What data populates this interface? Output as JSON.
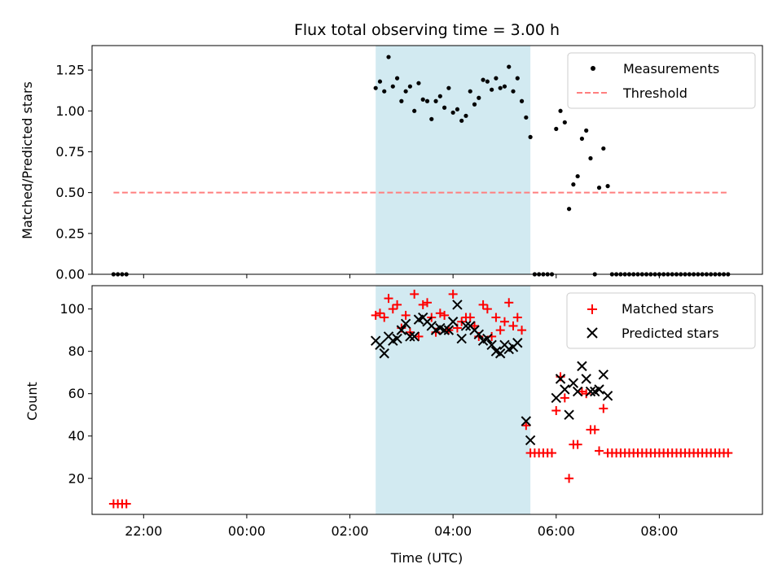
{
  "chart_data": [
    {
      "type": "scatter",
      "title": "Flux total observing time = 3.00 h",
      "xlabel": "",
      "ylabel": "Matched/Predicted stars",
      "ylim": [
        0,
        1.4
      ],
      "yticks": [
        "0.00",
        "0.25",
        "0.50",
        "0.75",
        "1.00",
        "1.25"
      ],
      "xlim": [
        "21:00",
        "10:00"
      ],
      "shaded_region": [
        "02:30",
        "05:30"
      ],
      "shaded_color": "#add8e6",
      "legend_position": "top-right",
      "series": [
        {
          "name": "Measurements",
          "color": "#000000",
          "marker": "dot",
          "points": [
            [
              "21:25",
              0
            ],
            [
              "21:30",
              0
            ],
            [
              "21:35",
              0
            ],
            [
              "21:40",
              0
            ],
            [
              "02:30",
              1.14
            ],
            [
              "02:35",
              1.18
            ],
            [
              "02:40",
              1.12
            ],
            [
              "02:45",
              1.33
            ],
            [
              "02:50",
              1.15
            ],
            [
              "02:55",
              1.2
            ],
            [
              "03:00",
              1.06
            ],
            [
              "03:05",
              1.12
            ],
            [
              "03:10",
              1.15
            ],
            [
              "03:15",
              1.0
            ],
            [
              "03:20",
              1.17
            ],
            [
              "03:25",
              1.07
            ],
            [
              "03:30",
              1.06
            ],
            [
              "03:35",
              0.95
            ],
            [
              "03:40",
              1.06
            ],
            [
              "03:45",
              1.09
            ],
            [
              "03:50",
              1.02
            ],
            [
              "03:55",
              1.14
            ],
            [
              "04:00",
              0.99
            ],
            [
              "04:05",
              1.01
            ],
            [
              "04:10",
              0.94
            ],
            [
              "04:15",
              0.97
            ],
            [
              "04:20",
              1.12
            ],
            [
              "04:25",
              1.04
            ],
            [
              "04:30",
              1.08
            ],
            [
              "04:35",
              1.19
            ],
            [
              "04:40",
              1.18
            ],
            [
              "04:45",
              1.13
            ],
            [
              "04:50",
              1.2
            ],
            [
              "04:55",
              1.14
            ],
            [
              "05:00",
              1.15
            ],
            [
              "05:05",
              1.27
            ],
            [
              "05:10",
              1.12
            ],
            [
              "05:15",
              1.2
            ],
            [
              "05:20",
              1.06
            ],
            [
              "05:25",
              0.96
            ],
            [
              "05:30",
              0.84
            ],
            [
              "05:35",
              0
            ],
            [
              "05:40",
              0
            ],
            [
              "05:45",
              0
            ],
            [
              "05:50",
              0
            ],
            [
              "05:55",
              0
            ],
            [
              "06:00",
              0.89
            ],
            [
              "06:05",
              1.0
            ],
            [
              "06:10",
              0.93
            ],
            [
              "06:15",
              0.4
            ],
            [
              "06:20",
              0.55
            ],
            [
              "06:25",
              0.6
            ],
            [
              "06:30",
              0.83
            ],
            [
              "06:35",
              0.88
            ],
            [
              "06:40",
              0.71
            ],
            [
              "06:45",
              0.0
            ],
            [
              "06:50",
              0.53
            ],
            [
              "06:55",
              0.77
            ],
            [
              "07:00",
              0.54
            ],
            [
              "07:05",
              0
            ],
            [
              "07:10",
              0
            ],
            [
              "07:15",
              0
            ],
            [
              "07:20",
              0
            ],
            [
              "07:25",
              0
            ],
            [
              "07:30",
              0
            ],
            [
              "07:35",
              0
            ],
            [
              "07:40",
              0
            ],
            [
              "07:45",
              0
            ],
            [
              "07:50",
              0
            ],
            [
              "07:55",
              0
            ],
            [
              "08:00",
              0
            ],
            [
              "08:05",
              0
            ],
            [
              "08:10",
              0
            ],
            [
              "08:15",
              0
            ],
            [
              "08:20",
              0
            ],
            [
              "08:25",
              0
            ],
            [
              "08:30",
              0
            ],
            [
              "08:35",
              0
            ],
            [
              "08:40",
              0
            ],
            [
              "08:45",
              0
            ],
            [
              "08:50",
              0
            ],
            [
              "08:55",
              0
            ],
            [
              "09:00",
              0
            ],
            [
              "09:05",
              0
            ],
            [
              "09:10",
              0
            ],
            [
              "09:15",
              0
            ],
            [
              "09:20",
              0
            ]
          ]
        },
        {
          "name": "Threshold",
          "color": "#ff7f7f",
          "marker": "dashed-line",
          "points": [
            [
              "21:25",
              0.5
            ],
            [
              "09:20",
              0.5
            ]
          ]
        }
      ]
    },
    {
      "type": "scatter",
      "title": "",
      "xlabel": "Time (UTC)",
      "ylabel": "Count",
      "ylim": [
        3,
        111
      ],
      "yticks": [
        "20",
        "40",
        "60",
        "80",
        "100"
      ],
      "xticks": [
        "22:00",
        "00:00",
        "02:00",
        "04:00",
        "06:00",
        "08:00"
      ],
      "xlim": [
        "21:00",
        "10:00"
      ],
      "shaded_region": [
        "02:30",
        "05:30"
      ],
      "shaded_color": "#add8e6",
      "legend_position": "top-right",
      "series": [
        {
          "name": "Matched stars",
          "color": "#ff0000",
          "marker": "plus",
          "points": [
            [
              "21:25",
              8
            ],
            [
              "21:30",
              8
            ],
            [
              "21:35",
              8
            ],
            [
              "21:40",
              8
            ],
            [
              "02:30",
              97
            ],
            [
              "02:35",
              98
            ],
            [
              "02:40",
              96
            ],
            [
              "02:45",
              105
            ],
            [
              "02:50",
              100
            ],
            [
              "02:55",
              102
            ],
            [
              "03:00",
              91
            ],
            [
              "03:05",
              97
            ],
            [
              "03:10",
              89
            ],
            [
              "03:15",
              107
            ],
            [
              "03:20",
              87
            ],
            [
              "03:25",
              102
            ],
            [
              "03:30",
              103
            ],
            [
              "03:35",
              96
            ],
            [
              "03:40",
              89
            ],
            [
              "03:45",
              98
            ],
            [
              "03:50",
              97
            ],
            [
              "03:55",
              90
            ],
            [
              "04:00",
              107
            ],
            [
              "04:05",
              91
            ],
            [
              "04:10",
              94
            ],
            [
              "04:15",
              96
            ],
            [
              "04:20",
              96
            ],
            [
              "04:25",
              92
            ],
            [
              "04:30",
              87
            ],
            [
              "04:35",
              102
            ],
            [
              "04:40",
              100
            ],
            [
              "04:45",
              87
            ],
            [
              "04:50",
              96
            ],
            [
              "04:55",
              90
            ],
            [
              "05:00",
              94
            ],
            [
              "05:05",
              103
            ],
            [
              "05:10",
              92
            ],
            [
              "05:15",
              96
            ],
            [
              "05:20",
              90
            ],
            [
              "05:25",
              45
            ],
            [
              "05:30",
              32
            ],
            [
              "05:35",
              32
            ],
            [
              "05:40",
              32
            ],
            [
              "05:45",
              32
            ],
            [
              "05:50",
              32
            ],
            [
              "05:55",
              32
            ],
            [
              "06:00",
              52
            ],
            [
              "06:05",
              68
            ],
            [
              "06:10",
              58
            ],
            [
              "06:15",
              20
            ],
            [
              "06:20",
              36
            ],
            [
              "06:25",
              36
            ],
            [
              "06:30",
              61
            ],
            [
              "06:35",
              60
            ],
            [
              "06:40",
              43
            ],
            [
              "06:45",
              43
            ],
            [
              "06:50",
              33
            ],
            [
              "06:55",
              53
            ],
            [
              "07:00",
              32
            ],
            [
              "07:05",
              32
            ],
            [
              "07:10",
              32
            ],
            [
              "07:15",
              32
            ],
            [
              "07:20",
              32
            ],
            [
              "07:25",
              32
            ],
            [
              "07:30",
              32
            ],
            [
              "07:35",
              32
            ],
            [
              "07:40",
              32
            ],
            [
              "07:45",
              32
            ],
            [
              "07:50",
              32
            ],
            [
              "07:55",
              32
            ],
            [
              "08:00",
              32
            ],
            [
              "08:05",
              32
            ],
            [
              "08:10",
              32
            ],
            [
              "08:15",
              32
            ],
            [
              "08:20",
              32
            ],
            [
              "08:25",
              32
            ],
            [
              "08:30",
              32
            ],
            [
              "08:35",
              32
            ],
            [
              "08:40",
              32
            ],
            [
              "08:45",
              32
            ],
            [
              "08:50",
              32
            ],
            [
              "08:55",
              32
            ],
            [
              "09:00",
              32
            ],
            [
              "09:05",
              32
            ],
            [
              "09:10",
              32
            ],
            [
              "09:15",
              32
            ],
            [
              "09:20",
              32
            ]
          ]
        },
        {
          "name": "Predicted stars",
          "color": "#000000",
          "marker": "x",
          "points": [
            [
              "02:30",
              85
            ],
            [
              "02:35",
              83
            ],
            [
              "02:40",
              79
            ],
            [
              "02:45",
              87
            ],
            [
              "02:50",
              85
            ],
            [
              "02:55",
              86
            ],
            [
              "03:00",
              90
            ],
            [
              "03:05",
              93
            ],
            [
              "03:10",
              87
            ],
            [
              "03:15",
              87
            ],
            [
              "03:20",
              95
            ],
            [
              "03:25",
              96
            ],
            [
              "03:30",
              94
            ],
            [
              "03:35",
              92
            ],
            [
              "03:40",
              90
            ],
            [
              "03:45",
              91
            ],
            [
              "03:50",
              90
            ],
            [
              "03:55",
              90
            ],
            [
              "04:00",
              94
            ],
            [
              "04:05",
              102
            ],
            [
              "04:10",
              86
            ],
            [
              "04:15",
              92
            ],
            [
              "04:20",
              92
            ],
            [
              "04:25",
              90
            ],
            [
              "04:30",
              88
            ],
            [
              "04:35",
              85
            ],
            [
              "04:40",
              86
            ],
            [
              "04:45",
              83
            ],
            [
              "04:50",
              80
            ],
            [
              "04:55",
              79
            ],
            [
              "05:00",
              83
            ],
            [
              "05:05",
              81
            ],
            [
              "05:10",
              82
            ],
            [
              "05:15",
              84
            ],
            [
              "05:25",
              47
            ],
            [
              "05:30",
              38
            ],
            [
              "06:00",
              58
            ],
            [
              "06:05",
              67
            ],
            [
              "06:10",
              62
            ],
            [
              "06:15",
              50
            ],
            [
              "06:20",
              65
            ],
            [
              "06:25",
              61
            ],
            [
              "06:30",
              73
            ],
            [
              "06:35",
              67
            ],
            [
              "06:40",
              61
            ],
            [
              "06:45",
              61
            ],
            [
              "06:50",
              62
            ],
            [
              "06:55",
              69
            ],
            [
              "07:00",
              59
            ]
          ]
        }
      ]
    }
  ]
}
